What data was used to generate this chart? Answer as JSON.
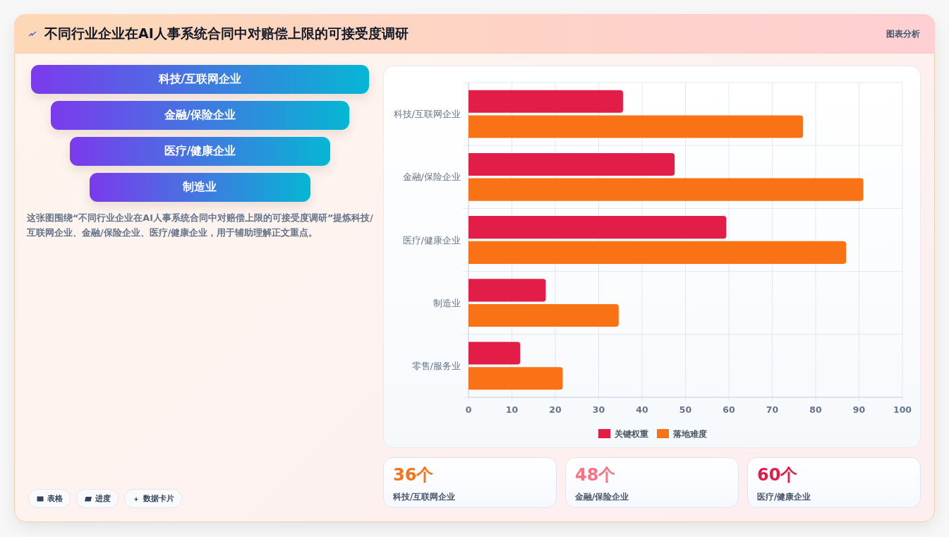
{
  "chart_data": [
    {
      "type": "other",
      "title": "不同行业企业在AI人事系统合同中对赔偿上限的可接受度调研",
      "annotations": [
        "图表分析"
      ]
    },
    {
      "type": "other",
      "categories": [
        "科技/互联网企业",
        "金融/保险企业",
        "医疗/健康企业",
        "制造业"
      ],
      "annotations": [
        "这张图围绕“不同行业企业在AI人事系统合同中对赔偿上限的可接受度调研”提炼科技/互联网企业、金融/保险企业、医疗/健康企业，用于辅助理解正文重点。"
      ]
    },
    {
      "type": "bar",
      "orientation": "horizontal",
      "categories": [
        "科技/互联网企业",
        "金融/保险企业",
        "医疗/健康企业",
        "制造业",
        "零售/服务业"
      ],
      "series": [
        {
          "name": "关键权重",
          "color": "#e11d48",
          "values": [
            35.6,
            47.5,
            59.4,
            17.8,
            11.9
          ]
        },
        {
          "name": "落地难度",
          "color": "#f97316",
          "values": [
            77.1,
            91.0,
            87.0,
            34.6,
            21.7
          ]
        }
      ],
      "xlim": [
        0,
        100
      ],
      "xticks": [
        0,
        10,
        20,
        30,
        40,
        50,
        60,
        70,
        80,
        90,
        100
      ],
      "grid": true,
      "legend": "bottom"
    },
    {
      "type": "other",
      "categories": [
        "表格",
        "进度",
        "数据卡片"
      ]
    },
    {
      "type": "other",
      "categories": [
        "科技/互联网企业",
        "金融/保险企业",
        "医疗/健康企业"
      ],
      "value_labels": [
        "36个",
        "48个",
        "60个"
      ]
    }
  ]
}
